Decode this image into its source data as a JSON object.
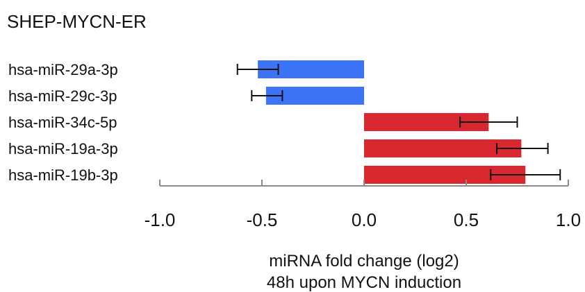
{
  "chart_data": {
    "type": "bar",
    "orientation": "horizontal",
    "title": "SHEP-MYCN-ER",
    "xlabel": [
      "miRNA fold change (log2)",
      "48h upon MYCN induction"
    ],
    "categories": [
      "hsa-miR-29a-3p",
      "hsa-miR-29c-3p",
      "hsa-miR-34c-5p",
      "hsa-miR-19a-3p",
      "hsa-miR-19b-3p"
    ],
    "values": [
      -0.52,
      -0.48,
      0.61,
      0.77,
      0.79
    ],
    "errors": [
      [
        -0.62,
        -0.42
      ],
      [
        -0.55,
        -0.4
      ],
      [
        0.47,
        0.75
      ],
      [
        0.65,
        0.9
      ],
      [
        0.62,
        0.96
      ]
    ],
    "xlim": [
      -1.0,
      1.0
    ],
    "xticks": [
      -1.0,
      -0.5,
      0.0,
      0.5,
      1.0
    ],
    "xtick_labels": [
      "-1.0",
      "-0.5",
      "0.0",
      "0.5",
      "1.0"
    ],
    "colors": {
      "negative": "#3d73f5",
      "positive": "#d9282f",
      "axis": "#8a8a8a",
      "error_bar": "#111111"
    },
    "grid": false,
    "legend": "none"
  }
}
